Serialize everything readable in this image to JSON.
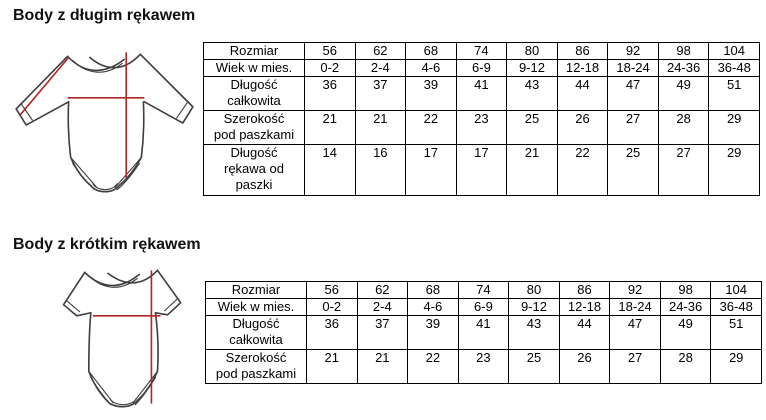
{
  "colors": {
    "measure_red": "#b32424",
    "outline_gray": "#3f3f3f",
    "table_border": "#000000",
    "background": "#ffffff"
  },
  "sections": [
    {
      "title": "Body z długim rękawem",
      "illustration": "long-sleeve-bodysuit-diagram",
      "table": {
        "rows": [
          {
            "label": "Rozmiar",
            "values": [
              "56",
              "62",
              "68",
              "74",
              "80",
              "86",
              "92",
              "98",
              "104"
            ]
          },
          {
            "label": "Wiek w mies.",
            "values": [
              "0-2",
              "2-4",
              "4-6",
              "6-9",
              "9-12",
              "12-18",
              "18-24",
              "24-36",
              "36-48"
            ]
          },
          {
            "label": "Długość całkowita",
            "values": [
              "36",
              "37",
              "39",
              "41",
              "43",
              "44",
              "47",
              "49",
              "51"
            ]
          },
          {
            "label": "Szerokość pod paszkami",
            "values": [
              "21",
              "21",
              "22",
              "23",
              "25",
              "26",
              "27",
              "28",
              "29"
            ]
          },
          {
            "label": "Długość rękawa od paszki",
            "values": [
              "14",
              "16",
              "17",
              "17",
              "21",
              "22",
              "25",
              "27",
              "29"
            ]
          }
        ]
      }
    },
    {
      "title": "Body z krótkim rękawem",
      "illustration": "short-sleeve-bodysuit-diagram",
      "table": {
        "rows": [
          {
            "label": "Rozmiar",
            "values": [
              "56",
              "62",
              "68",
              "74",
              "80",
              "86",
              "92",
              "98",
              "104"
            ]
          },
          {
            "label": "Wiek w mies.",
            "values": [
              "0-2",
              "2-4",
              "4-6",
              "6-9",
              "9-12",
              "12-18",
              "18-24",
              "24-36",
              "36-48"
            ]
          },
          {
            "label": "Długość całkowita",
            "values": [
              "36",
              "37",
              "39",
              "41",
              "43",
              "44",
              "47",
              "49",
              "51"
            ]
          },
          {
            "label": "Szerokość pod paszkami",
            "values": [
              "21",
              "21",
              "22",
              "23",
              "25",
              "26",
              "27",
              "28",
              "29"
            ]
          }
        ]
      }
    }
  ]
}
